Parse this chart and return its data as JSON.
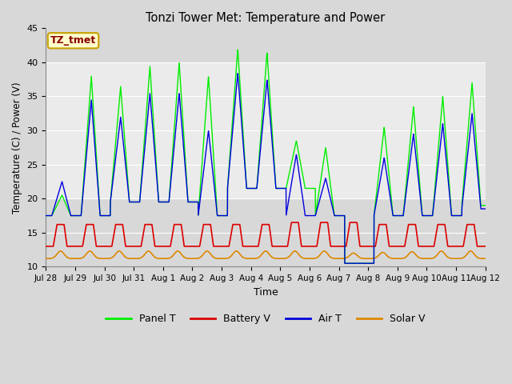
{
  "title": "Tonzi Tower Met: Temperature and Power",
  "xlabel": "Time",
  "ylabel": "Temperature (C) / Power (V)",
  "ylim": [
    10,
    45
  ],
  "bg_light": "#f0f0f0",
  "bg_dark": "#d8d8d8",
  "annotation_text": "TZ_tmet",
  "annotation_color": "#8b0000",
  "annotation_bg": "#ffffcc",
  "annotation_border": "#c8a000",
  "xtick_labels": [
    "Jul 28",
    "Jul 29",
    "Jul 30",
    "Jul 31",
    "Aug 1",
    "Aug 2",
    "Aug 3",
    "Aug 4",
    "Aug 5",
    "Aug 6",
    "Aug 7",
    "Aug 8",
    "Aug 9",
    "Aug 10",
    "Aug 11",
    "Aug 12"
  ],
  "colors": {
    "panel": "#00ee00",
    "battery": "#dd0000",
    "air": "#0000dd",
    "solar": "#dd8800"
  },
  "legend_labels": [
    "Panel T",
    "Battery V",
    "Air T",
    "Solar V"
  ],
  "panel_peaks": [
    20.5,
    38.0,
    36.5,
    39.5,
    40.0,
    38.0,
    42.0,
    41.5,
    28.5,
    27.5,
    10.5,
    30.5,
    33.5,
    35.0,
    37.0
  ],
  "panel_troughs": [
    17.5,
    17.5,
    19.5,
    19.5,
    19.5,
    17.5,
    21.5,
    21.5,
    21.5,
    17.5,
    10.5,
    17.5,
    17.5,
    17.5,
    19.0
  ],
  "air_peaks": [
    22.5,
    34.5,
    32.0,
    35.5,
    35.5,
    30.0,
    38.5,
    37.5,
    26.5,
    23.0,
    10.5,
    26.0,
    29.5,
    31.0,
    32.5
  ],
  "air_troughs": [
    17.5,
    17.5,
    19.5,
    19.5,
    19.5,
    17.5,
    21.5,
    21.5,
    17.5,
    17.5,
    10.5,
    17.5,
    17.5,
    17.5,
    18.5
  ],
  "battery_peaks": [
    16.2,
    16.2,
    16.2,
    16.2,
    16.2,
    16.2,
    16.2,
    16.2,
    16.5,
    16.5,
    16.5,
    16.2,
    16.2,
    16.2,
    16.2
  ],
  "battery_base": 13.0,
  "solar_peaks": [
    12.3,
    12.3,
    12.3,
    12.3,
    12.3,
    12.3,
    12.3,
    12.3,
    12.3,
    12.3,
    12.0,
    12.1,
    12.2,
    12.3,
    12.3
  ],
  "solar_base": 11.2
}
